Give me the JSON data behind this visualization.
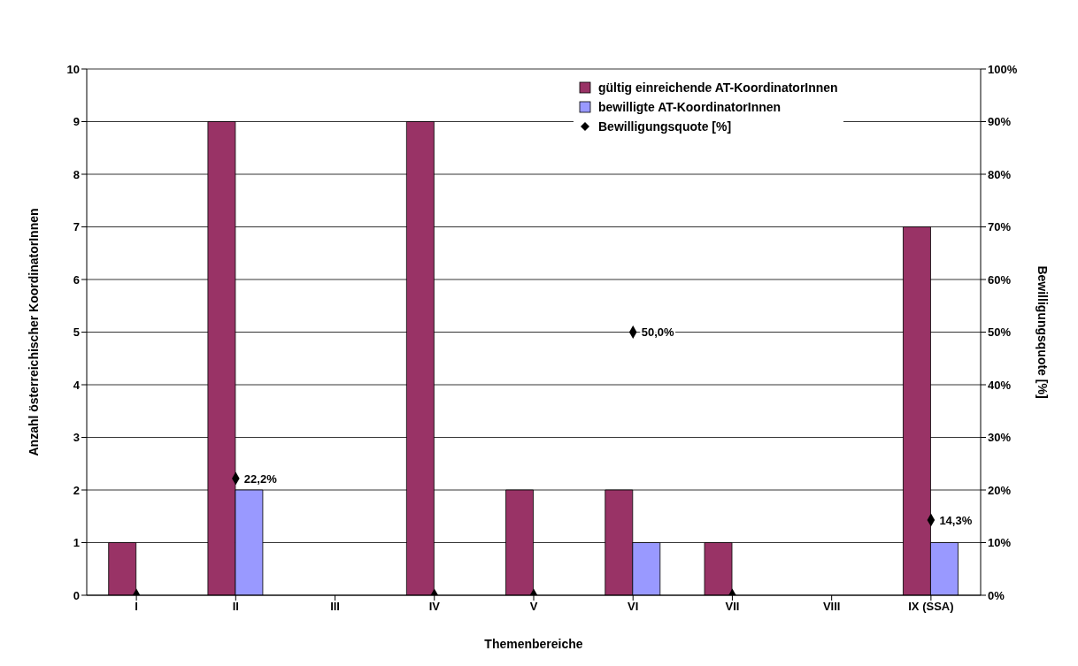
{
  "chart_data": {
    "type": "bar",
    "xlabel": "Themenbereiche",
    "ylabel": "Anzahl österreichischer KoordinatorInnen",
    "y2label": "Bewilligungsquote [%]",
    "categories": [
      "I",
      "II",
      "III",
      "IV",
      "V",
      "VI",
      "VII",
      "VIII",
      "IX (SSA)"
    ],
    "series": [
      {
        "name": "gültig einreichende AT-KoordinatorInnen",
        "color": "#993366",
        "values": [
          1,
          9,
          null,
          9,
          2,
          2,
          1,
          null,
          7
        ]
      },
      {
        "name": "bewilligte AT-KoordinatorInnen",
        "color": "#9999ff",
        "values": [
          0,
          2,
          null,
          0,
          0,
          1,
          0,
          null,
          1
        ]
      },
      {
        "name": "Bewilligungsquote [%]",
        "type": "scatter",
        "axis": "y2",
        "color": "#000000",
        "marker": "diamond",
        "values": [
          0,
          22.2,
          null,
          0,
          0,
          50,
          0,
          null,
          14.3
        ],
        "value_labels": [
          null,
          "22,2%",
          null,
          null,
          null,
          "50,0%",
          null,
          null,
          "14,3%"
        ]
      }
    ],
    "ylim": [
      0,
      10
    ],
    "yticks": [
      0,
      1,
      2,
      3,
      4,
      5,
      6,
      7,
      8,
      9,
      10
    ],
    "y2lim": [
      0,
      100
    ],
    "y2ticks": [
      {
        "value": 0,
        "label": "0%"
      },
      {
        "value": 10,
        "label": "10%"
      },
      {
        "value": 20,
        "label": "20%"
      },
      {
        "value": 30,
        "label": "30%"
      },
      {
        "value": 40,
        "label": "40%"
      },
      {
        "value": 50,
        "label": "50%"
      },
      {
        "value": 60,
        "label": "60%"
      },
      {
        "value": 70,
        "label": "70%"
      },
      {
        "value": 80,
        "label": "80%"
      },
      {
        "value": 90,
        "label": "90%"
      },
      {
        "value": 100,
        "label": "100%"
      }
    ],
    "grid": "y",
    "legend": "top right"
  }
}
